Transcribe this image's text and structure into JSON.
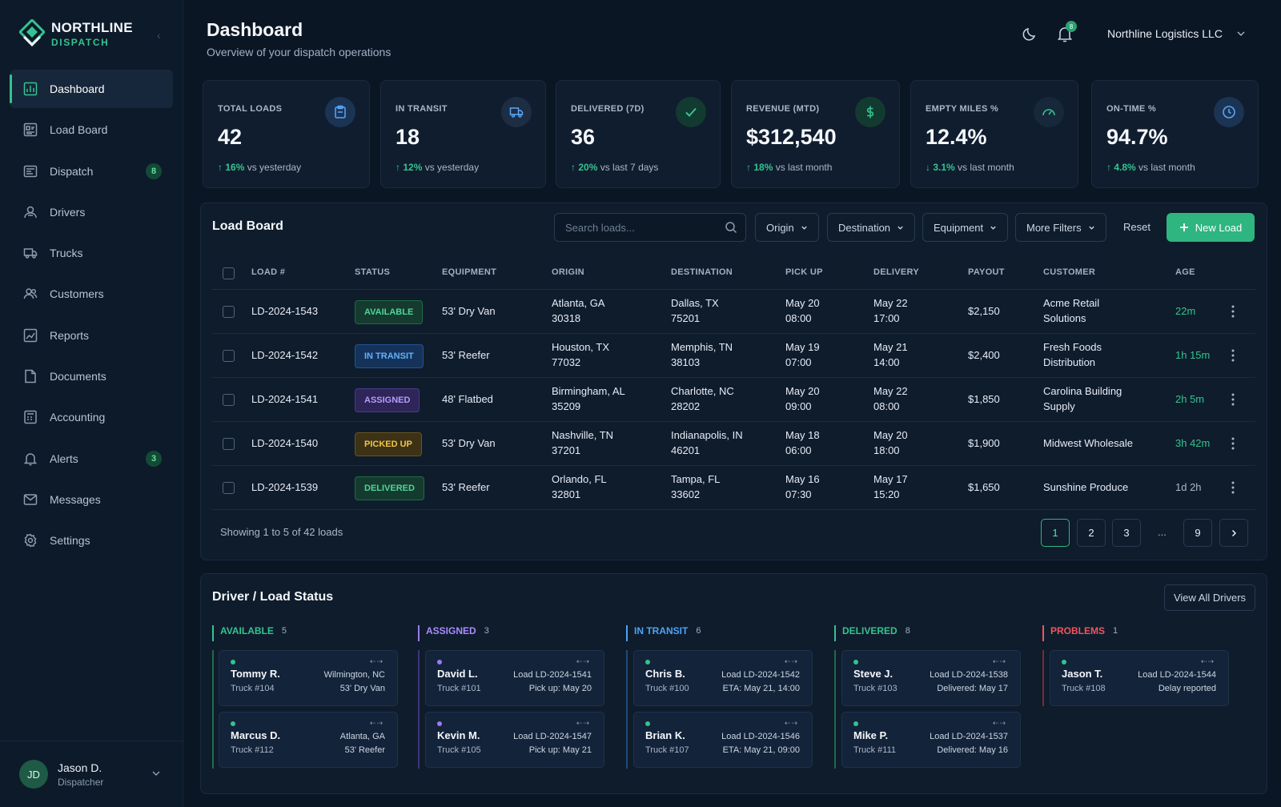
{
  "brand": {
    "name": "NORTHLINE",
    "sub": "DISPATCH"
  },
  "colors": {
    "accent": "#34c38f",
    "background": "#0b1624",
    "panel": "#0f1c2c",
    "available": "#34c38f",
    "assigned": "#9b7bf0",
    "in_transit": "#4ea3f5",
    "picked_up": "#e0b23a",
    "problems": "#f0555f"
  },
  "sidebar": {
    "items": [
      {
        "label": "Dashboard",
        "icon": "dashboard-icon",
        "active": true,
        "badge": ""
      },
      {
        "label": "Load Board",
        "icon": "load-board-icon",
        "badge": ""
      },
      {
        "label": "Dispatch",
        "icon": "dispatch-icon",
        "badge": "8"
      },
      {
        "label": "Drivers",
        "icon": "drivers-icon",
        "badge": ""
      },
      {
        "label": "Trucks",
        "icon": "truck-icon",
        "badge": ""
      },
      {
        "label": "Customers",
        "icon": "customers-icon",
        "badge": ""
      },
      {
        "label": "Reports",
        "icon": "reports-icon",
        "badge": ""
      },
      {
        "label": "Documents",
        "icon": "documents-icon",
        "badge": ""
      },
      {
        "label": "Accounting",
        "icon": "accounting-icon",
        "badge": ""
      },
      {
        "label": "Alerts",
        "icon": "bell-icon",
        "badge": "3"
      },
      {
        "label": "Messages",
        "icon": "messages-icon",
        "badge": ""
      },
      {
        "label": "Settings",
        "icon": "gear-icon",
        "badge": ""
      }
    ],
    "user": {
      "initials": "JD",
      "name": "Jason D.",
      "role": "Dispatcher"
    }
  },
  "header": {
    "title": "Dashboard",
    "subtitle": "Overview of your dispatch operations",
    "notification_count": "8",
    "company": "Northline Logistics LLC"
  },
  "kpis": [
    {
      "label": "TOTAL LOADS",
      "value": "42",
      "delta": "16%",
      "delta_text": "vs yesterday",
      "direction": "up",
      "icon": "clipboard-icon"
    },
    {
      "label": "IN TRANSIT",
      "value": "18",
      "delta": "12%",
      "delta_text": "vs yesterday",
      "direction": "up",
      "icon": "truck-icon"
    },
    {
      "label": "DELIVERED (7D)",
      "value": "36",
      "delta": "20%",
      "delta_text": "vs last 7 days",
      "direction": "up",
      "icon": "check-icon"
    },
    {
      "label": "REVENUE (MTD)",
      "value": "$312,540",
      "delta": "18%",
      "delta_text": "vs last month",
      "direction": "up",
      "icon": "dollar-icon"
    },
    {
      "label": "EMPTY MILES %",
      "value": "12.4%",
      "delta": "3.1%",
      "delta_text": "vs last month",
      "direction": "down",
      "icon": "gauge-icon"
    },
    {
      "label": "ON-TIME %",
      "value": "94.7%",
      "delta": "4.8%",
      "delta_text": "vs last month",
      "direction": "up",
      "icon": "clock-icon"
    }
  ],
  "load_board": {
    "title": "Load Board",
    "search_placeholder": "Search loads...",
    "filters": [
      "Origin",
      "Destination",
      "Equipment",
      "More Filters"
    ],
    "reset": "Reset",
    "new_load": "New Load",
    "columns": [
      "LOAD #",
      "STATUS",
      "EQUIPMENT",
      "ORIGIN",
      "DESTINATION",
      "PICK UP",
      "DELIVERY",
      "PAYOUT",
      "CUSTOMER",
      "AGE"
    ],
    "rows": [
      {
        "load": "LD-2024-1543",
        "status": "AVAILABLE",
        "equipment": "53' Dry Van",
        "origin_city": "Atlanta, GA",
        "origin_zip": "30318",
        "dest_city": "Dallas, TX",
        "dest_zip": "75201",
        "pickup_date": "May 20",
        "pickup_time": "08:00",
        "delivery_date": "May 22",
        "delivery_time": "17:00",
        "payout": "$2,150",
        "customer_1": "Acme Retail",
        "customer_2": "Solutions",
        "age": "22m"
      },
      {
        "load": "LD-2024-1542",
        "status": "IN TRANSIT",
        "equipment": "53' Reefer",
        "origin_city": "Houston, TX",
        "origin_zip": "77032",
        "dest_city": "Memphis, TN",
        "dest_zip": "38103",
        "pickup_date": "May 19",
        "pickup_time": "07:00",
        "delivery_date": "May 21",
        "delivery_time": "14:00",
        "payout": "$2,400",
        "customer_1": "Fresh Foods",
        "customer_2": "Distribution",
        "age": "1h 15m"
      },
      {
        "load": "LD-2024-1541",
        "status": "ASSIGNED",
        "equipment": "48' Flatbed",
        "origin_city": "Birmingham, AL",
        "origin_zip": "35209",
        "dest_city": "Charlotte, NC",
        "dest_zip": "28202",
        "pickup_date": "May 20",
        "pickup_time": "09:00",
        "delivery_date": "May 22",
        "delivery_time": "08:00",
        "payout": "$1,850",
        "customer_1": "Carolina Building",
        "customer_2": "Supply",
        "age": "2h 5m"
      },
      {
        "load": "LD-2024-1540",
        "status": "PICKED UP",
        "equipment": "53' Dry Van",
        "origin_city": "Nashville, TN",
        "origin_zip": "37201",
        "dest_city": "Indianapolis, IN",
        "dest_zip": "46201",
        "pickup_date": "May 18",
        "pickup_time": "06:00",
        "delivery_date": "May 20",
        "delivery_time": "18:00",
        "payout": "$1,900",
        "customer_1": "Midwest Wholesale",
        "customer_2": "",
        "age": "3h 42m"
      },
      {
        "load": "LD-2024-1539",
        "status": "DELIVERED",
        "equipment": "53' Reefer",
        "origin_city": "Orlando, FL",
        "origin_zip": "32801",
        "dest_city": "Tampa, FL",
        "dest_zip": "33602",
        "pickup_date": "May 16",
        "pickup_time": "07:30",
        "delivery_date": "May 17",
        "delivery_time": "15:20",
        "payout": "$1,650",
        "customer_1": "Sunshine Produce",
        "customer_2": "",
        "age": "1d 2h"
      }
    ],
    "showing": "Showing 1 to 5 of 42 loads",
    "pages": [
      "1",
      "2",
      "3",
      "...",
      "9"
    ]
  },
  "driver_status": {
    "title": "Driver / Load Status",
    "view_all": "View All Drivers",
    "columns": [
      {
        "label": "AVAILABLE",
        "count": "5",
        "cards": [
          {
            "name": "Tommy R.",
            "truck": "Truck #104",
            "line1": "Wilmington, NC",
            "line2": "53' Dry Van"
          },
          {
            "name": "Marcus D.",
            "truck": "Truck #112",
            "line1": "Atlanta, GA",
            "line2": "53' Reefer"
          }
        ]
      },
      {
        "label": "ASSIGNED",
        "count": "3",
        "cards": [
          {
            "name": "David L.",
            "truck": "Truck #101",
            "line1": "Load LD-2024-1541",
            "line2": "Pick up: May 20"
          },
          {
            "name": "Kevin M.",
            "truck": "Truck #105",
            "line1": "Load LD-2024-1547",
            "line2": "Pick up: May 21"
          }
        ]
      },
      {
        "label": "IN TRANSIT",
        "count": "6",
        "cards": [
          {
            "name": "Chris B.",
            "truck": "Truck #100",
            "line1": "Load LD-2024-1542",
            "line2": "ETA: May 21, 14:00"
          },
          {
            "name": "Brian K.",
            "truck": "Truck #107",
            "line1": "Load LD-2024-1546",
            "line2": "ETA: May 21, 09:00"
          }
        ]
      },
      {
        "label": "DELIVERED",
        "count": "8",
        "cards": [
          {
            "name": "Steve J.",
            "truck": "Truck #103",
            "line1": "Load LD-2024-1538",
            "line2": "Delivered: May 17"
          },
          {
            "name": "Mike P.",
            "truck": "Truck #111",
            "line1": "Load LD-2024-1537",
            "line2": "Delivered: May 16"
          }
        ]
      },
      {
        "label": "PROBLEMS",
        "count": "1",
        "cards": [
          {
            "name": "Jason T.",
            "truck": "Truck #108",
            "line1": "Load LD-2024-1544",
            "line2": "Delay reported"
          }
        ]
      }
    ]
  }
}
